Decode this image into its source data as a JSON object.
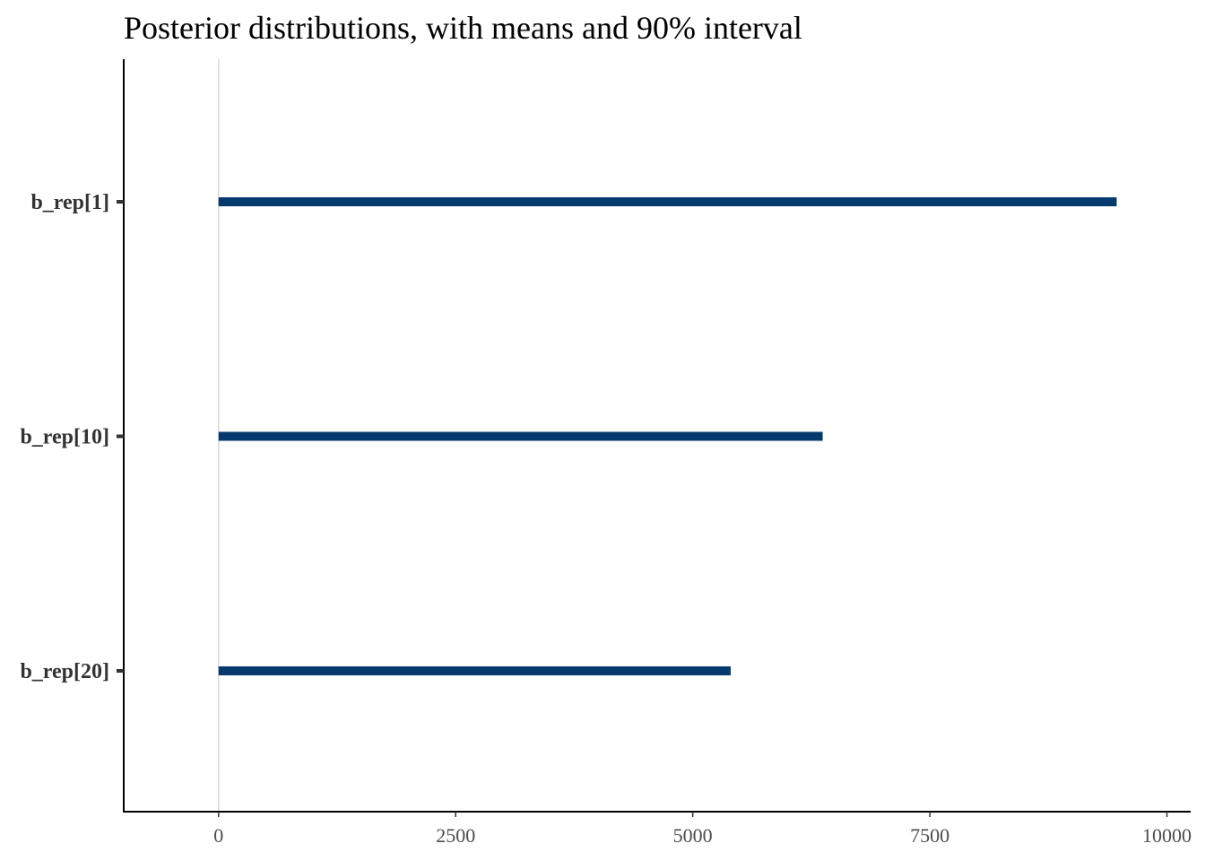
{
  "chart_data": {
    "type": "interval",
    "title": "Posterior distributions, with means and 90% interval",
    "xlabel": "",
    "ylabel": "",
    "xlim": [
      -1000,
      10250
    ],
    "x_ticks": [
      0,
      2500,
      5000,
      7500,
      10000
    ],
    "x_tick_labels": [
      "0",
      "2500",
      "5000",
      "7500",
      "10000"
    ],
    "vline_at": 0,
    "grid": false,
    "legend": "none",
    "categories": [
      "b_rep[1]",
      "b_rep[10]",
      "b_rep[20]"
    ],
    "intervals": [
      {
        "low": 0,
        "high": 9470
      },
      {
        "low": 0,
        "high": 6370
      },
      {
        "low": 0,
        "high": 5400
      }
    ],
    "colors": {
      "interval": "#063a6e",
      "vline": "#d9d9d9",
      "axis": "#000000"
    }
  }
}
